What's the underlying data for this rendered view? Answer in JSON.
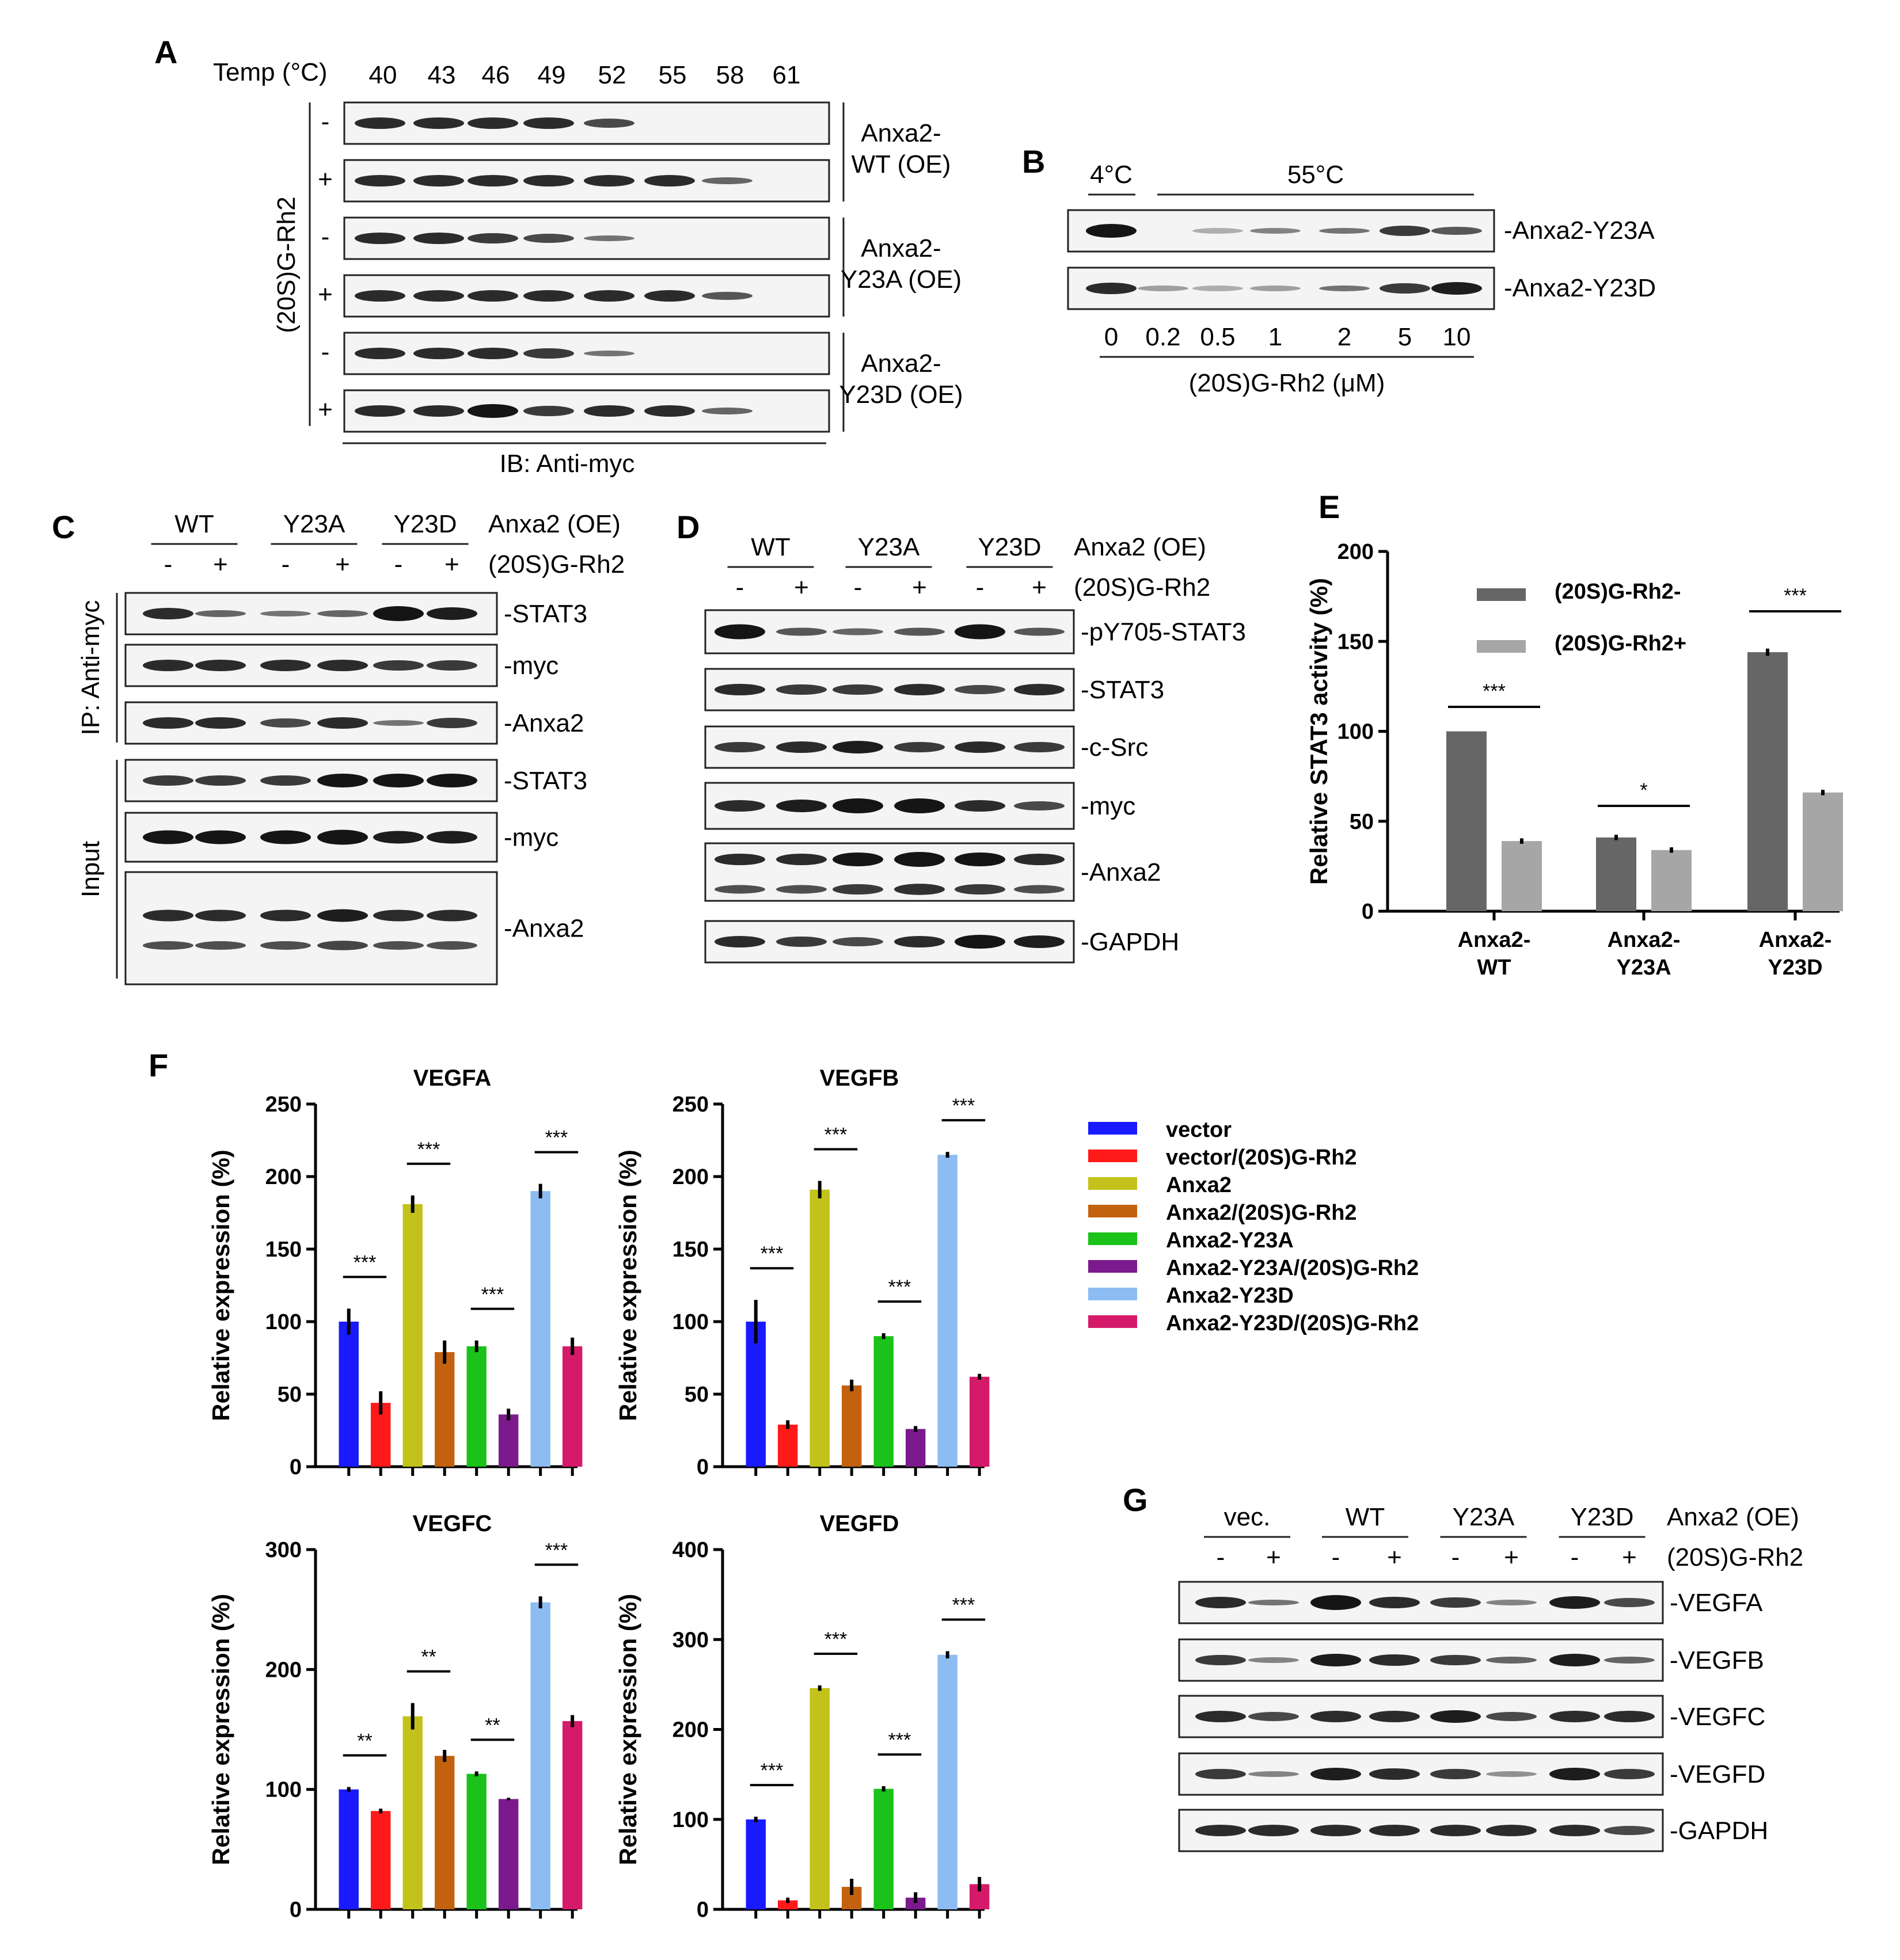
{
  "panel_labels": {
    "A": "A",
    "B": "B",
    "C": "C",
    "D": "D",
    "E": "E",
    "F": "F",
    "G": "G"
  },
  "panel_a": {
    "temp_label": "Temp (°C)",
    "temps": [
      "40",
      "43",
      "46",
      "49",
      "52",
      "55",
      "58",
      "61"
    ],
    "treatment_label": "(20S)G-Rh2",
    "signs": [
      "-",
      "+",
      "-",
      "+",
      "-",
      "+"
    ],
    "groups": [
      [
        "Anxa2-",
        "WT (OE)"
      ],
      [
        "Anxa2-",
        "Y23A (OE)"
      ],
      [
        "Anxa2-",
        "Y23D (OE)"
      ]
    ],
    "ib_label": "IB: Anti-myc",
    "band_intensity": [
      [
        1,
        1,
        1,
        1,
        0.8,
        0,
        0,
        0
      ],
      [
        1,
        1,
        1,
        1,
        1,
        1,
        0.6,
        0
      ],
      [
        1,
        1,
        0.9,
        0.8,
        0.5,
        0,
        0,
        0
      ],
      [
        1,
        1,
        1,
        1,
        1,
        1,
        0.7,
        0
      ],
      [
        1,
        1,
        1,
        0.9,
        0.5,
        0,
        0,
        0
      ],
      [
        1,
        1,
        1.2,
        0.9,
        1,
        1,
        0.6,
        0
      ]
    ]
  },
  "panel_b": {
    "temp_4": "4°C",
    "temp_55": "55°C",
    "rows": [
      "-Anxa2-Y23A",
      "-Anxa2-Y23D"
    ],
    "conc": [
      "0",
      "0.2",
      "0.5",
      "1",
      "2",
      "5",
      "10"
    ],
    "conc_label": "(20S)G-Rh2 (μM)",
    "band_intensity": [
      [
        1.2,
        0,
        0.1,
        0.4,
        0.5,
        0.9,
        0.7
      ],
      [
        1,
        0.2,
        0.1,
        0.2,
        0.5,
        0.9,
        1.1
      ]
    ]
  },
  "panel_c": {
    "groups": [
      "WT",
      "Y23A",
      "Y23D"
    ],
    "oe_label": "Anxa2 (OE)",
    "treatment_label": "(20S)G-Rh2",
    "signs": [
      "-",
      "+",
      "-",
      "+",
      "-",
      "+"
    ],
    "ip_label": "IP: Anti-myc",
    "input_label": "Input",
    "rows": [
      "-STAT3",
      "-myc",
      "-Anxa2",
      "-STAT3",
      "-myc",
      "-Anxa2"
    ],
    "band_intensity": [
      [
        1,
        0.6,
        0.5,
        0.6,
        1.3,
        1.1
      ],
      [
        1,
        1,
        1,
        1,
        0.9,
        0.9
      ],
      [
        1,
        1,
        0.8,
        1,
        0.5,
        0.9
      ],
      [
        0.9,
        0.9,
        0.9,
        1.2,
        1.2,
        1.2
      ],
      [
        1.2,
        1.2,
        1.2,
        1.3,
        1.1,
        1.1
      ],
      [
        1,
        1,
        1,
        1.1,
        1,
        1
      ]
    ]
  },
  "panel_d": {
    "groups": [
      "WT",
      "Y23A",
      "Y23D"
    ],
    "oe_label": "Anxa2 (OE)",
    "treatment_label": "(20S)G-Rh2",
    "signs": [
      "-",
      "+",
      "-",
      "+",
      "-",
      "+"
    ],
    "rows": [
      "-pY705-STAT3",
      "-STAT3",
      "-c-Src",
      "-myc",
      "-Anxa2",
      "-GAPDH"
    ],
    "band_intensity": [
      [
        1.3,
        0.7,
        0.6,
        0.7,
        1.3,
        0.7
      ],
      [
        1,
        0.9,
        0.9,
        1,
        0.8,
        1
      ],
      [
        0.9,
        1,
        1.1,
        0.9,
        1,
        0.9
      ],
      [
        1,
        1.1,
        1.3,
        1.3,
        1,
        0.8
      ],
      [
        1,
        1,
        1.2,
        1.3,
        1.2,
        1
      ],
      [
        1,
        0.9,
        0.8,
        1,
        1.2,
        1.1
      ]
    ]
  },
  "panel_g": {
    "groups": [
      "vec.",
      "WT",
      "Y23A",
      "Y23D"
    ],
    "oe_label": "Anxa2 (OE)",
    "treatment_label": "(20S)G-Rh2",
    "signs": [
      "-",
      "+",
      "-",
      "+",
      "-",
      "+",
      "-",
      "+"
    ],
    "rows": [
      "-VEGFA",
      "-VEGFB",
      "-VEGFC",
      "-VEGFD",
      "-GAPDH"
    ],
    "band_intensity": [
      [
        1,
        0.5,
        1.3,
        1,
        0.9,
        0.4,
        1.1,
        0.8
      ],
      [
        0.9,
        0.4,
        1.1,
        1,
        0.9,
        0.6,
        1.1,
        0.6
      ],
      [
        1,
        0.8,
        1,
        1,
        1.1,
        0.8,
        1,
        1
      ],
      [
        0.9,
        0.4,
        1.1,
        1,
        0.9,
        0.3,
        1.1,
        0.9
      ],
      [
        1,
        1,
        1,
        1,
        1,
        1,
        1,
        0.8
      ]
    ]
  },
  "chart_data": [
    {
      "id": "E",
      "type": "bar",
      "categories": [
        [
          "Anxa2-",
          "WT"
        ],
        [
          "Anxa2-",
          "Y23A"
        ],
        [
          "Anxa2-",
          "Y23D"
        ]
      ],
      "series": [
        {
          "name": "(20S)G-Rh2-",
          "color": "#666666",
          "values": [
            100,
            41,
            144
          ],
          "errors": [
            0,
            1.5,
            2
          ]
        },
        {
          "name": "(20S)G-Rh2+",
          "color": "#a6a6a6",
          "values": [
            39,
            34,
            66
          ],
          "errors": [
            1.5,
            1.5,
            1.5
          ]
        }
      ],
      "ylabel": "Relative STAT3 activity (%)",
      "ylim": [
        0,
        200
      ],
      "yticks": [
        0,
        50,
        100,
        150,
        200
      ],
      "significance": [
        "***",
        "*",
        "***"
      ],
      "legend_position": "top-left"
    },
    {
      "id": "VEGFA",
      "type": "bar",
      "title": "VEGFA",
      "ylabel": "Relative expression (%)",
      "ylim": [
        0,
        250
      ],
      "yticks": [
        0,
        50,
        100,
        150,
        200,
        250
      ],
      "values": [
        100,
        44,
        181,
        79,
        83,
        36,
        190,
        83
      ],
      "errors": [
        9,
        8,
        6,
        8,
        4,
        4,
        5,
        6
      ],
      "significance": [
        "***",
        "***",
        "***",
        "***"
      ]
    },
    {
      "id": "VEGFB",
      "type": "bar",
      "title": "VEGFB",
      "ylabel": "Relative expression (%)",
      "ylim": [
        0,
        250
      ],
      "yticks": [
        0,
        50,
        100,
        150,
        200,
        250
      ],
      "values": [
        100,
        29,
        191,
        56,
        90,
        26,
        215,
        62
      ],
      "errors": [
        15,
        3,
        6,
        4,
        2,
        2,
        2,
        2
      ],
      "significance": [
        "***",
        "***",
        "***",
        "***"
      ]
    },
    {
      "id": "VEGFC",
      "type": "bar",
      "title": "VEGFC",
      "ylabel": "Relative expression (%)",
      "ylim": [
        0,
        300
      ],
      "yticks": [
        0,
        100,
        200,
        300
      ],
      "values": [
        100,
        82,
        161,
        128,
        113,
        92,
        256,
        157
      ],
      "errors": [
        2,
        2,
        11,
        5,
        2,
        1,
        5,
        5
      ],
      "significance": [
        "**",
        "**",
        "**",
        "***"
      ]
    },
    {
      "id": "VEGFD",
      "type": "bar",
      "title": "VEGFD",
      "ylabel": "Relative expression (%)",
      "ylim": [
        0,
        400
      ],
      "yticks": [
        0,
        100,
        200,
        300,
        400
      ],
      "values": [
        100,
        10,
        246,
        25,
        134,
        13,
        283,
        28
      ],
      "errors": [
        3,
        3,
        3,
        9,
        3,
        6,
        4,
        8
      ],
      "significance": [
        "***",
        "***",
        "***",
        "***"
      ]
    }
  ],
  "panel_f_legend": [
    {
      "label": "vector",
      "color": "#1a1aff"
    },
    {
      "label": "vector/(20S)G-Rh2",
      "color": "#ff1a1a"
    },
    {
      "label": "Anxa2",
      "color": "#c2c21a"
    },
    {
      "label": "Anxa2/(20S)G-Rh2",
      "color": "#c2620f"
    },
    {
      "label": "Anxa2-Y23A",
      "color": "#1ac21a"
    },
    {
      "label": "Anxa2-Y23A/(20S)G-Rh2",
      "color": "#7a1a8c"
    },
    {
      "label": "Anxa2-Y23D",
      "color": "#8cbcf2"
    },
    {
      "label": "Anxa2-Y23D/(20S)G-Rh2",
      "color": "#d61a6a"
    }
  ]
}
